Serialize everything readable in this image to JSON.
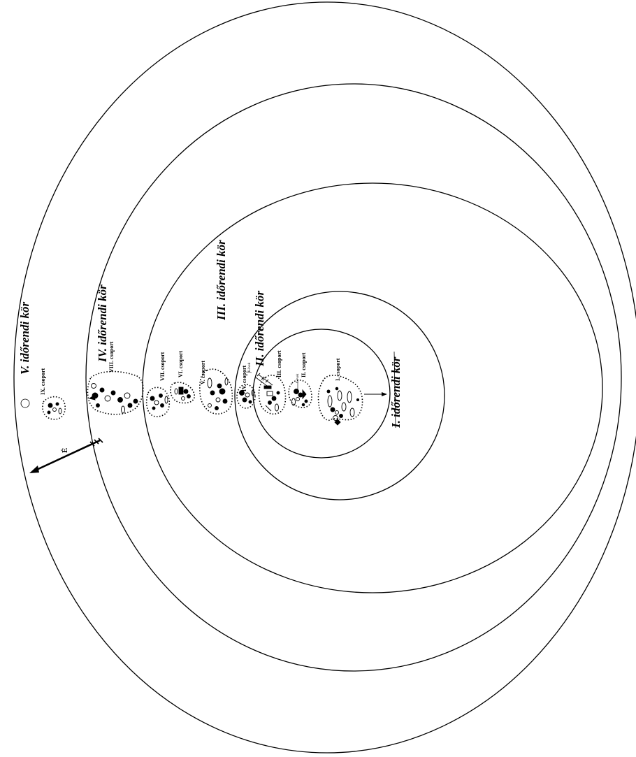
{
  "diagram": {
    "ring_labels": [
      "I. időrendi kör",
      "II. időrendi kör",
      "III. időrendi kör",
      "IV. időrendi kör",
      "V. időrendi kör"
    ],
    "group_labels": [
      "I. csoport",
      "II. csoport",
      "III. csoport",
      "IV. csoport",
      "V. csoport",
      "VI. csoport",
      "VII. csoport",
      "VIII. csoport",
      "IX. csoport"
    ],
    "small_labels": [
      "Kövek",
      "Kövek"
    ],
    "north_label": "É",
    "colors": {
      "line": "#000000",
      "background": "#ffffff"
    }
  }
}
